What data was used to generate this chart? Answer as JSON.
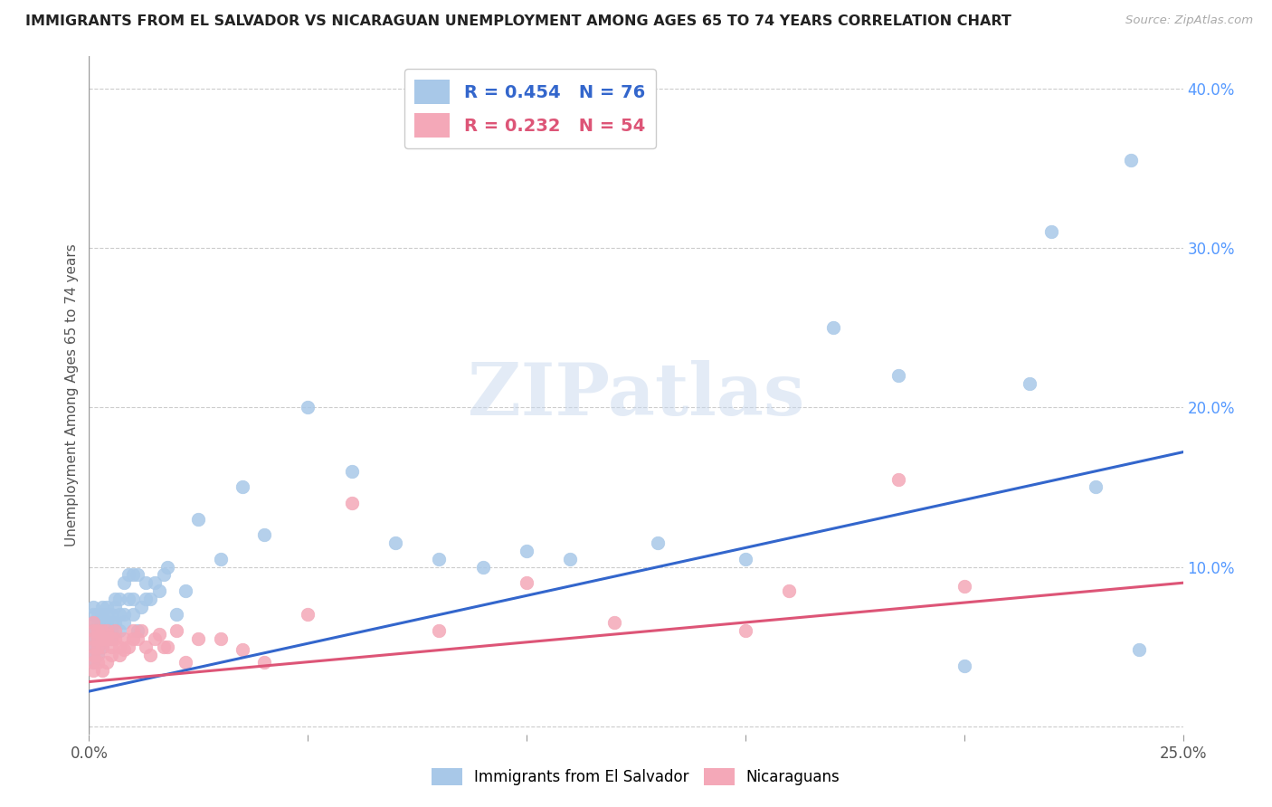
{
  "title": "IMMIGRANTS FROM EL SALVADOR VS NICARAGUAN UNEMPLOYMENT AMONG AGES 65 TO 74 YEARS CORRELATION CHART",
  "source": "Source: ZipAtlas.com",
  "ylabel": "Unemployment Among Ages 65 to 74 years",
  "xlim": [
    0.0,
    0.25
  ],
  "ylim": [
    -0.005,
    0.42
  ],
  "xticks": [
    0.0,
    0.05,
    0.1,
    0.15,
    0.2,
    0.25
  ],
  "xtick_labels": [
    "0.0%",
    "",
    "",
    "",
    "",
    "25.0%"
  ],
  "yticks_right": [
    0.1,
    0.2,
    0.3,
    0.4
  ],
  "ytick_labels_right": [
    "10.0%",
    "20.0%",
    "30.0%",
    "40.0%"
  ],
  "blue_R": 0.454,
  "blue_N": 76,
  "pink_R": 0.232,
  "pink_N": 54,
  "blue_color": "#a8c8e8",
  "pink_color": "#f4a8b8",
  "blue_line_color": "#3366cc",
  "pink_line_color": "#dd5577",
  "blue_label": "Immigrants from El Salvador",
  "pink_label": "Nicaraguans",
  "watermark": "ZIPatlas",
  "background_color": "#ffffff",
  "blue_line_start_y": 0.022,
  "blue_line_end_y": 0.172,
  "pink_line_start_y": 0.028,
  "pink_line_end_y": 0.09,
  "blue_scatter_x": [
    0.001,
    0.001,
    0.001,
    0.001,
    0.001,
    0.001,
    0.001,
    0.001,
    0.002,
    0.002,
    0.002,
    0.002,
    0.002,
    0.002,
    0.003,
    0.003,
    0.003,
    0.003,
    0.003,
    0.003,
    0.004,
    0.004,
    0.004,
    0.004,
    0.004,
    0.005,
    0.005,
    0.005,
    0.005,
    0.006,
    0.006,
    0.006,
    0.007,
    0.007,
    0.007,
    0.008,
    0.008,
    0.008,
    0.009,
    0.009,
    0.01,
    0.01,
    0.01,
    0.011,
    0.011,
    0.012,
    0.013,
    0.013,
    0.014,
    0.015,
    0.016,
    0.017,
    0.018,
    0.02,
    0.022,
    0.025,
    0.03,
    0.035,
    0.04,
    0.05,
    0.06,
    0.07,
    0.08,
    0.09,
    0.1,
    0.11,
    0.13,
    0.15,
    0.17,
    0.185,
    0.2,
    0.215,
    0.22,
    0.23,
    0.238,
    0.24
  ],
  "blue_scatter_y": [
    0.06,
    0.065,
    0.07,
    0.075,
    0.055,
    0.05,
    0.045,
    0.04,
    0.06,
    0.065,
    0.07,
    0.055,
    0.05,
    0.045,
    0.065,
    0.07,
    0.06,
    0.055,
    0.05,
    0.075,
    0.065,
    0.06,
    0.055,
    0.07,
    0.075,
    0.06,
    0.065,
    0.07,
    0.055,
    0.065,
    0.075,
    0.08,
    0.06,
    0.07,
    0.08,
    0.07,
    0.065,
    0.09,
    0.08,
    0.095,
    0.07,
    0.08,
    0.095,
    0.06,
    0.095,
    0.075,
    0.08,
    0.09,
    0.08,
    0.09,
    0.085,
    0.095,
    0.1,
    0.07,
    0.085,
    0.13,
    0.105,
    0.15,
    0.12,
    0.2,
    0.16,
    0.115,
    0.105,
    0.1,
    0.11,
    0.105,
    0.115,
    0.105,
    0.25,
    0.22,
    0.038,
    0.215,
    0.31,
    0.15,
    0.355,
    0.048
  ],
  "pink_scatter_x": [
    0.001,
    0.001,
    0.001,
    0.001,
    0.001,
    0.001,
    0.001,
    0.002,
    0.002,
    0.002,
    0.002,
    0.002,
    0.003,
    0.003,
    0.003,
    0.003,
    0.004,
    0.004,
    0.004,
    0.005,
    0.005,
    0.005,
    0.006,
    0.006,
    0.007,
    0.007,
    0.008,
    0.008,
    0.009,
    0.01,
    0.01,
    0.011,
    0.012,
    0.013,
    0.014,
    0.015,
    0.016,
    0.017,
    0.018,
    0.02,
    0.022,
    0.025,
    0.03,
    0.035,
    0.04,
    0.05,
    0.06,
    0.08,
    0.1,
    0.12,
    0.15,
    0.16,
    0.185,
    0.2
  ],
  "pink_scatter_y": [
    0.065,
    0.06,
    0.055,
    0.05,
    0.045,
    0.04,
    0.035,
    0.06,
    0.055,
    0.05,
    0.045,
    0.04,
    0.06,
    0.055,
    0.05,
    0.035,
    0.06,
    0.055,
    0.04,
    0.055,
    0.05,
    0.045,
    0.055,
    0.06,
    0.05,
    0.045,
    0.055,
    0.048,
    0.05,
    0.06,
    0.055,
    0.055,
    0.06,
    0.05,
    0.045,
    0.055,
    0.058,
    0.05,
    0.05,
    0.06,
    0.04,
    0.055,
    0.055,
    0.048,
    0.04,
    0.07,
    0.14,
    0.06,
    0.09,
    0.065,
    0.06,
    0.085,
    0.155,
    0.088
  ]
}
